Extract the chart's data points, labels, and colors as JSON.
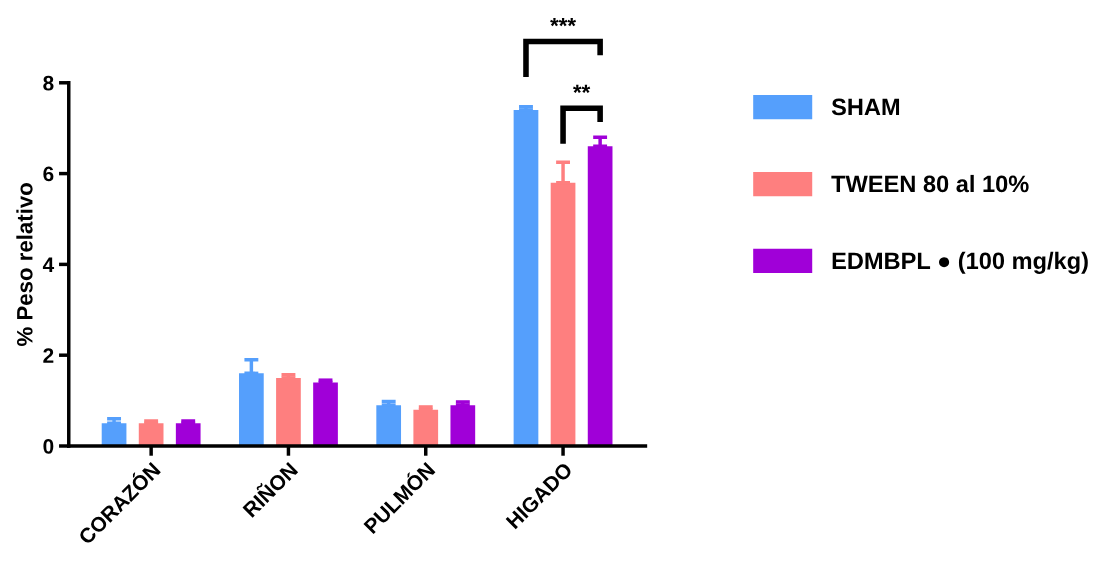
{
  "chart_data": {
    "type": "bar",
    "ylabel": "% Peso relativo",
    "categories": [
      "CORAZÓN",
      "RIÑON",
      "PULMÓN",
      "HIGADO"
    ],
    "series": [
      {
        "name": "SHAM",
        "color": "#559ffc",
        "values": [
          0.5,
          1.6,
          0.9,
          7.4
        ],
        "errors": [
          [
            0.5,
            0.6
          ],
          [
            1.6,
            1.9
          ],
          [
            0.9,
            0.98
          ],
          [
            7.4,
            7.47
          ]
        ]
      },
      {
        "name": "TWEEN 80 al 10%",
        "color": "#fe7f7f",
        "values": [
          0.5,
          1.5,
          0.8,
          5.8
        ],
        "errors": [
          [
            0.5,
            0.55
          ],
          [
            1.5,
            1.57
          ],
          [
            0.8,
            0.86
          ],
          [
            5.8,
            6.25
          ]
        ]
      },
      {
        "name": "EDMBPL ● (100 mg/kg)",
        "color": "#a000d8",
        "values": [
          0.5,
          1.4,
          0.9,
          6.6
        ],
        "errors": [
          [
            0.5,
            0.55
          ],
          [
            1.4,
            1.45
          ],
          [
            0.9,
            0.97
          ],
          [
            6.6,
            6.8
          ]
        ]
      }
    ],
    "ylim": [
      0,
      8
    ],
    "yticks": [
      0,
      2,
      4,
      6,
      8
    ],
    "grid": false,
    "legend": "right",
    "annotations": [
      "***",
      "**"
    ]
  }
}
